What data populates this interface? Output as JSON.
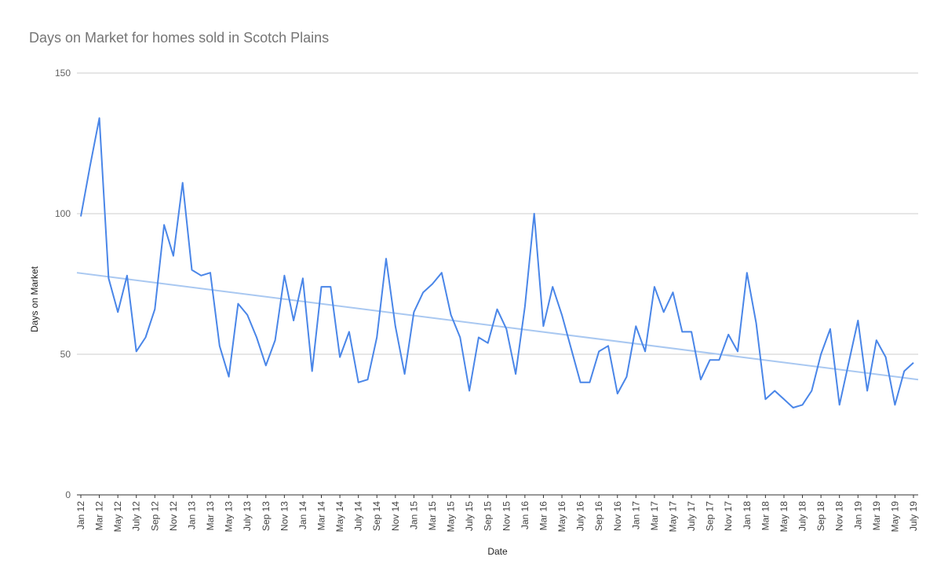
{
  "chart_data": {
    "type": "line",
    "title": "Days on Market for homes sold in Scotch Plains",
    "xlabel": "Date",
    "ylabel": "Days on Market",
    "ylim": [
      0,
      150
    ],
    "yticks": [
      0,
      50,
      100,
      150
    ],
    "grid": true,
    "colors": {
      "series": "#4a86e8",
      "trend": "#a9c8f1",
      "grid": "#cccccc",
      "axis": "#333333"
    },
    "x_tick_labels": [
      "Jan 12",
      "Mar 12",
      "May 12",
      "July 12",
      "Sep 12",
      "Nov 12",
      "Jan 13",
      "Mar 13",
      "May 13",
      "July 13",
      "Sep 13",
      "Nov 13",
      "Jan 14",
      "Mar 14",
      "May 14",
      "July 14",
      "Sep 14",
      "Nov 14",
      "Jan 15",
      "Mar 15",
      "May 15",
      "July 15",
      "Sep 15",
      "Nov 15",
      "Jan 16",
      "Mar 16",
      "May 16",
      "July 16",
      "Sep 16",
      "Nov 16",
      "Jan 17",
      "Mar 17",
      "May 17",
      "July 17",
      "Sep 17",
      "Nov 17",
      "Jan 18",
      "Mar 18",
      "May 18",
      "July 18",
      "Sep 18",
      "Nov 18",
      "Jan 19",
      "Mar 19",
      "May 19",
      "July 19"
    ],
    "series": [
      {
        "values": [
          99,
          117,
          134,
          77,
          65,
          78,
          51,
          56,
          66,
          96,
          85,
          111,
          80,
          78,
          79,
          53,
          42,
          68,
          64,
          56,
          46,
          55,
          78,
          62,
          77,
          44,
          74,
          74,
          49,
          58,
          40,
          41,
          56,
          84,
          60,
          43,
          65,
          72,
          75,
          79,
          64,
          56,
          37,
          56,
          54,
          66,
          59,
          43,
          67,
          100,
          60,
          74,
          64,
          52,
          40,
          40,
          51,
          53,
          36,
          42,
          60,
          51,
          74,
          65,
          72,
          58,
          58,
          41,
          48,
          48,
          57,
          51,
          79,
          61,
          34,
          37,
          34,
          31,
          32,
          37,
          50,
          59,
          32,
          47,
          62,
          37,
          55,
          49,
          32,
          44,
          47
        ]
      }
    ],
    "trendline": {
      "start": 79,
      "end": 41
    }
  }
}
